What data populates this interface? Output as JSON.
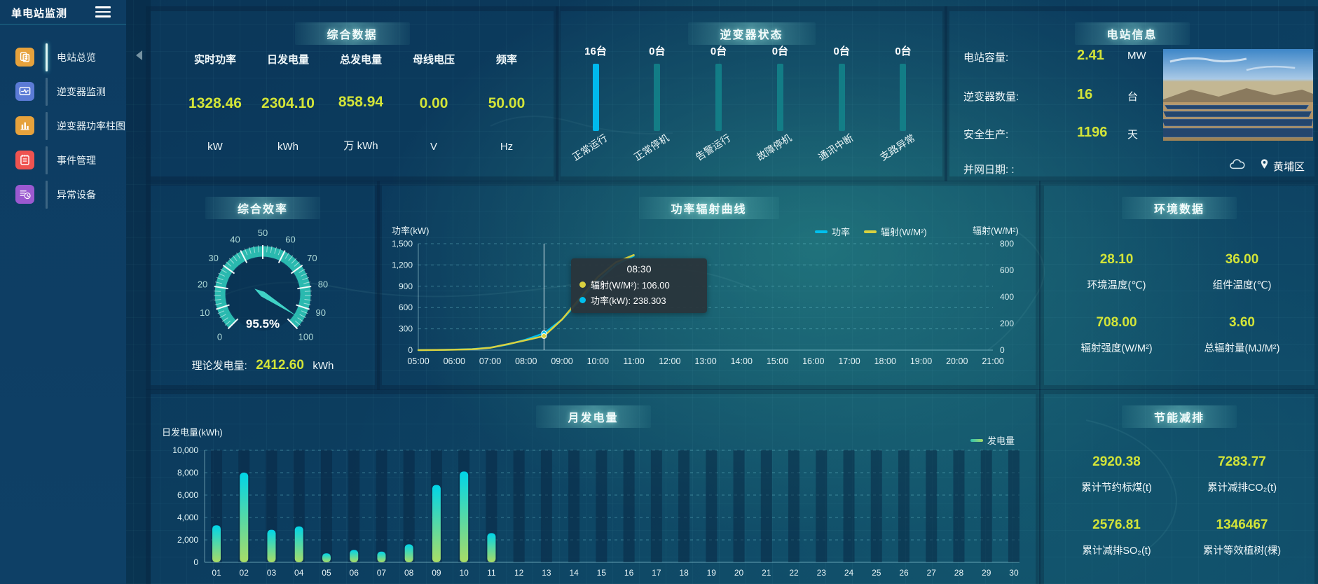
{
  "app": {
    "title": "单电站监测"
  },
  "sidebar": {
    "items": [
      {
        "id": "station-overview",
        "label": "电站总览",
        "icon": "overview",
        "color": "#e6a23c",
        "active": true
      },
      {
        "id": "inverter-monitor",
        "label": "逆变器监测",
        "icon": "monitor",
        "color": "#5b7bd6",
        "active": false
      },
      {
        "id": "inverter-power-bars",
        "label": "逆变器功率柱图",
        "icon": "powerbar",
        "color": "#e6a23c",
        "active": false
      },
      {
        "id": "event-management",
        "label": "事件管理",
        "icon": "events",
        "color": "#ef5350",
        "active": false
      },
      {
        "id": "abnormal-devices",
        "label": "异常设备",
        "icon": "abnormal",
        "color": "#9b59d0",
        "active": false
      }
    ]
  },
  "panels": {
    "summary": {
      "title": "综合数据",
      "metrics": [
        {
          "label": "实时功率",
          "value": "1328.46",
          "unit": "kW"
        },
        {
          "label": "日发电量",
          "value": "2304.10",
          "unit": "kWh"
        },
        {
          "label": "总发电量",
          "value": "858.94",
          "unit": "万 kWh"
        },
        {
          "label": "母线电压",
          "value": "0.00",
          "unit": "V"
        },
        {
          "label": "频率",
          "value": "50.00",
          "unit": "Hz"
        }
      ]
    },
    "inverters": {
      "title": "逆变器状态",
      "statuses": [
        {
          "count": "16台",
          "label": "正常运行",
          "active": true
        },
        {
          "count": "0台",
          "label": "正常停机",
          "active": false
        },
        {
          "count": "0台",
          "label": "告警运行",
          "active": false
        },
        {
          "count": "0台",
          "label": "故障停机",
          "active": false
        },
        {
          "count": "0台",
          "label": "通讯中断",
          "active": false
        },
        {
          "count": "0台",
          "label": "支路异常",
          "active": false
        }
      ]
    },
    "station": {
      "title": "电站信息",
      "rows": [
        {
          "label": "电站容量:",
          "value": "2.41",
          "unit": "MW"
        },
        {
          "label": "逆变器数量:",
          "value": "16",
          "unit": "台"
        },
        {
          "label": "安全生产:",
          "value": "1196",
          "unit": "天"
        },
        {
          "label": "并网日期: :",
          "value": "",
          "unit": ""
        }
      ],
      "district": "黄埔区"
    },
    "efficiency": {
      "title": "综合效率",
      "value_display": "95.5%",
      "theory_label": "理论发电量:",
      "theory_value": "2412.60",
      "theory_unit": "kWh"
    },
    "power_curve": {
      "title": "功率辐射曲线",
      "left_axis_title": "功率(kW)",
      "right_axis_title": "辐射(W/M²)",
      "legend": [
        {
          "label": "功率",
          "color": "#00c0ee"
        },
        {
          "label": "辐射(W/M²)",
          "color": "#d9d13f"
        }
      ],
      "tooltip": {
        "time": "08:30",
        "entries": [
          {
            "color": "#d9d13f",
            "text": "辐射(W/M²): 106.00"
          },
          {
            "color": "#00c0ee",
            "text": "功率(kW): 238.303"
          }
        ]
      }
    },
    "environment": {
      "title": "环境数据",
      "cells": [
        {
          "value": "28.10",
          "label": "环境温度(℃)"
        },
        {
          "value": "36.00",
          "label": "组件温度(℃)"
        },
        {
          "value": "708.00",
          "label": "辐射强度(W/M²)"
        },
        {
          "value": "3.60",
          "label": "总辐射量(MJ/M²)"
        }
      ]
    },
    "monthly": {
      "title": "月发电量",
      "y_axis_title": "日发电量(kWh)",
      "legend": "发电量"
    },
    "saving": {
      "title": "节能减排",
      "cells": [
        {
          "value": "2920.38",
          "label": "累计节约标煤(t)"
        },
        {
          "value": "7283.77",
          "label": "累计减排CO₂(t)"
        },
        {
          "value": "2576.81",
          "label": "累计减排SO₂(t)"
        },
        {
          "value": "1346467",
          "label": "累计等效植树(棵)"
        }
      ]
    }
  },
  "chart_data": [
    {
      "id": "power_radiation_curve",
      "type": "line",
      "title": "功率辐射曲线",
      "x_min": 5,
      "x_max": 21,
      "x_ticks": [
        "05:00",
        "06:00",
        "07:00",
        "08:00",
        "09:00",
        "10:00",
        "11:00",
        "12:00",
        "13:00",
        "14:00",
        "15:00",
        "16:00",
        "17:00",
        "18:00",
        "19:00",
        "20:00",
        "21:00"
      ],
      "left_axis": {
        "label": "功率(kW)",
        "min": 0,
        "max": 1500,
        "ticks": [
          0,
          300,
          600,
          900,
          1200,
          1500
        ]
      },
      "right_axis": {
        "label": "辐射(W/M²)",
        "min": 0,
        "max": 800,
        "ticks": [
          0,
          200,
          400,
          600,
          800
        ]
      },
      "series": [
        {
          "name": "功率",
          "axis": "left",
          "color": "#00c0ee",
          "points": [
            [
              5,
              0
            ],
            [
              5.5,
              2
            ],
            [
              6,
              8
            ],
            [
              6.5,
              15
            ],
            [
              7,
              35
            ],
            [
              7.5,
              80
            ],
            [
              8,
              150
            ],
            [
              8.5,
              238.303
            ],
            [
              9,
              430
            ],
            [
              9.5,
              700
            ],
            [
              10,
              980
            ],
            [
              10.5,
              1200
            ],
            [
              11,
              1328
            ]
          ]
        },
        {
          "name": "辐射(W/M²)",
          "axis": "right",
          "color": "#d9d13f",
          "points": [
            [
              5,
              0
            ],
            [
              5.5,
              1
            ],
            [
              6,
              3
            ],
            [
              6.5,
              7
            ],
            [
              7,
              18
            ],
            [
              7.5,
              45
            ],
            [
              8,
              75
            ],
            [
              8.5,
              106
            ],
            [
              9,
              230
            ],
            [
              9.5,
              390
            ],
            [
              10,
              550
            ],
            [
              10.5,
              660
            ],
            [
              11,
              715
            ]
          ]
        }
      ],
      "pointer_time": 8.5,
      "tooltip": {
        "time": "08:30",
        "radiation": 106.0,
        "power": 238.303
      },
      "legend_position": "top-right",
      "grid": true
    },
    {
      "id": "monthly_generation",
      "type": "bar",
      "title": "月发电量",
      "ylabel": "日发电量(kWh)",
      "legend": "发电量",
      "ylim": [
        0,
        10000
      ],
      "yticks": [
        0,
        2000,
        4000,
        6000,
        8000,
        10000
      ],
      "categories": [
        "01",
        "02",
        "03",
        "04",
        "05",
        "06",
        "07",
        "08",
        "09",
        "10",
        "11",
        "12",
        "13",
        "14",
        "15",
        "16",
        "17",
        "18",
        "19",
        "20",
        "21",
        "22",
        "23",
        "24",
        "25",
        "26",
        "27",
        "28",
        "29",
        "30"
      ],
      "values": [
        3300,
        8000,
        2900,
        3200,
        800,
        1100,
        950,
        1600,
        6900,
        8100,
        2600,
        0,
        0,
        0,
        0,
        0,
        0,
        0,
        0,
        0,
        0,
        0,
        0,
        0,
        0,
        0,
        0,
        0,
        0,
        0
      ]
    },
    {
      "id": "efficiency_gauge",
      "type": "gauge",
      "title": "综合效率",
      "min": 0,
      "max": 100,
      "value": 95.5,
      "display": "95.5%"
    },
    {
      "id": "inverter_status_bars",
      "type": "bar",
      "title": "逆变器状态",
      "categories": [
        "正常运行",
        "正常停机",
        "告警运行",
        "故障停机",
        "通讯中断",
        "支路异常"
      ],
      "values": [
        16,
        0,
        0,
        0,
        0,
        0
      ],
      "unit": "台"
    }
  ]
}
